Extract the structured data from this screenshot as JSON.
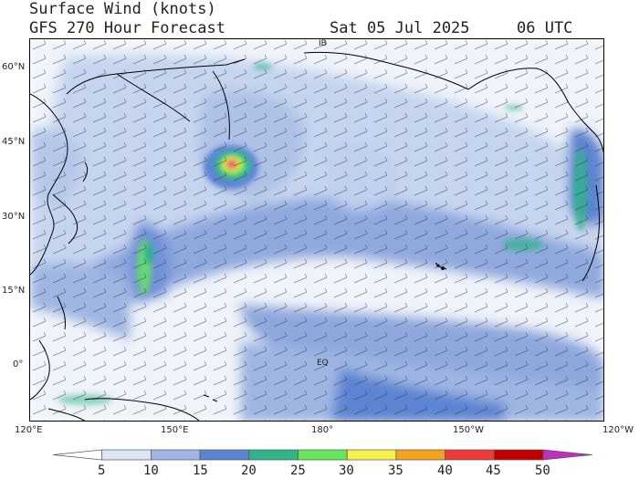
{
  "header": {
    "title": "Surface Wind (knots)",
    "subtitle": "GFS 270 Hour Forecast",
    "date": "Sat 05 Jul 2025",
    "time": "06 UTC"
  },
  "lat_labels": [
    "60°N",
    "45°N",
    "30°N",
    "15°N",
    "0°"
  ],
  "lon_labels": [
    "120°E",
    "150°E",
    "180°",
    "150°W",
    "120°W"
  ],
  "map_labels": {
    "ib": "IB",
    "eq": "EQ"
  },
  "legend": {
    "values": [
      "5",
      "10",
      "15",
      "20",
      "25",
      "30",
      "35",
      "40",
      "45",
      "50"
    ],
    "colors": [
      "#ffffff",
      "#dce6f5",
      "#9fb6e3",
      "#5b84d2",
      "#2fb48a",
      "#66e65c",
      "#f5f04a",
      "#f5a21e",
      "#ef3a3a",
      "#c00000",
      "#c030c0"
    ]
  }
}
